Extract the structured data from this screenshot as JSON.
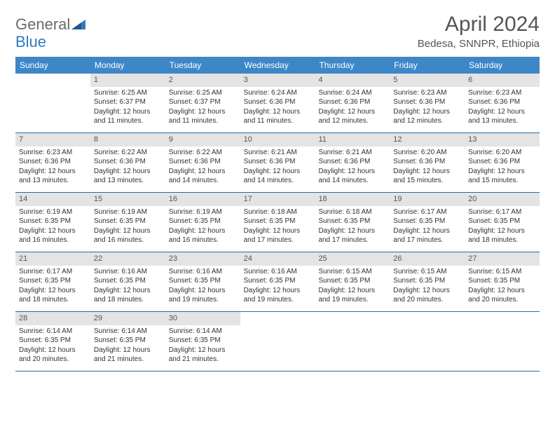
{
  "logo": {
    "textGray": "General",
    "textBlue": "Blue"
  },
  "title": "April 2024",
  "location": "Bedesa, SNNPR, Ethiopia",
  "colors": {
    "headerBar": "#3d87c7",
    "headerText": "#ffffff",
    "dayNumBg": "#e4e4e4",
    "dayNumText": "#555555",
    "bodyText": "#333333",
    "weekDivider": "#2a6aa3",
    "logoGray": "#6b6b6b",
    "logoBlue": "#2f7cc0"
  },
  "fonts": {
    "title_pt": 30,
    "location_pt": 15,
    "dow_pt": 12,
    "daynum_pt": 11,
    "body_pt": 10
  },
  "daysOfWeek": [
    "Sunday",
    "Monday",
    "Tuesday",
    "Wednesday",
    "Thursday",
    "Friday",
    "Saturday"
  ],
  "weeks": [
    [
      {
        "n": "",
        "lines": []
      },
      {
        "n": "1",
        "lines": [
          "Sunrise: 6:25 AM",
          "Sunset: 6:37 PM",
          "Daylight: 12 hours and 11 minutes."
        ]
      },
      {
        "n": "2",
        "lines": [
          "Sunrise: 6:25 AM",
          "Sunset: 6:37 PM",
          "Daylight: 12 hours and 11 minutes."
        ]
      },
      {
        "n": "3",
        "lines": [
          "Sunrise: 6:24 AM",
          "Sunset: 6:36 PM",
          "Daylight: 12 hours and 11 minutes."
        ]
      },
      {
        "n": "4",
        "lines": [
          "Sunrise: 6:24 AM",
          "Sunset: 6:36 PM",
          "Daylight: 12 hours and 12 minutes."
        ]
      },
      {
        "n": "5",
        "lines": [
          "Sunrise: 6:23 AM",
          "Sunset: 6:36 PM",
          "Daylight: 12 hours and 12 minutes."
        ]
      },
      {
        "n": "6",
        "lines": [
          "Sunrise: 6:23 AM",
          "Sunset: 6:36 PM",
          "Daylight: 12 hours and 13 minutes."
        ]
      }
    ],
    [
      {
        "n": "7",
        "lines": [
          "Sunrise: 6:23 AM",
          "Sunset: 6:36 PM",
          "Daylight: 12 hours and 13 minutes."
        ]
      },
      {
        "n": "8",
        "lines": [
          "Sunrise: 6:22 AM",
          "Sunset: 6:36 PM",
          "Daylight: 12 hours and 13 minutes."
        ]
      },
      {
        "n": "9",
        "lines": [
          "Sunrise: 6:22 AM",
          "Sunset: 6:36 PM",
          "Daylight: 12 hours and 14 minutes."
        ]
      },
      {
        "n": "10",
        "lines": [
          "Sunrise: 6:21 AM",
          "Sunset: 6:36 PM",
          "Daylight: 12 hours and 14 minutes."
        ]
      },
      {
        "n": "11",
        "lines": [
          "Sunrise: 6:21 AM",
          "Sunset: 6:36 PM",
          "Daylight: 12 hours and 14 minutes."
        ]
      },
      {
        "n": "12",
        "lines": [
          "Sunrise: 6:20 AM",
          "Sunset: 6:36 PM",
          "Daylight: 12 hours and 15 minutes."
        ]
      },
      {
        "n": "13",
        "lines": [
          "Sunrise: 6:20 AM",
          "Sunset: 6:36 PM",
          "Daylight: 12 hours and 15 minutes."
        ]
      }
    ],
    [
      {
        "n": "14",
        "lines": [
          "Sunrise: 6:19 AM",
          "Sunset: 6:35 PM",
          "Daylight: 12 hours and 16 minutes."
        ]
      },
      {
        "n": "15",
        "lines": [
          "Sunrise: 6:19 AM",
          "Sunset: 6:35 PM",
          "Daylight: 12 hours and 16 minutes."
        ]
      },
      {
        "n": "16",
        "lines": [
          "Sunrise: 6:19 AM",
          "Sunset: 6:35 PM",
          "Daylight: 12 hours and 16 minutes."
        ]
      },
      {
        "n": "17",
        "lines": [
          "Sunrise: 6:18 AM",
          "Sunset: 6:35 PM",
          "Daylight: 12 hours and 17 minutes."
        ]
      },
      {
        "n": "18",
        "lines": [
          "Sunrise: 6:18 AM",
          "Sunset: 6:35 PM",
          "Daylight: 12 hours and 17 minutes."
        ]
      },
      {
        "n": "19",
        "lines": [
          "Sunrise: 6:17 AM",
          "Sunset: 6:35 PM",
          "Daylight: 12 hours and 17 minutes."
        ]
      },
      {
        "n": "20",
        "lines": [
          "Sunrise: 6:17 AM",
          "Sunset: 6:35 PM",
          "Daylight: 12 hours and 18 minutes."
        ]
      }
    ],
    [
      {
        "n": "21",
        "lines": [
          "Sunrise: 6:17 AM",
          "Sunset: 6:35 PM",
          "Daylight: 12 hours and 18 minutes."
        ]
      },
      {
        "n": "22",
        "lines": [
          "Sunrise: 6:16 AM",
          "Sunset: 6:35 PM",
          "Daylight: 12 hours and 18 minutes."
        ]
      },
      {
        "n": "23",
        "lines": [
          "Sunrise: 6:16 AM",
          "Sunset: 6:35 PM",
          "Daylight: 12 hours and 19 minutes."
        ]
      },
      {
        "n": "24",
        "lines": [
          "Sunrise: 6:16 AM",
          "Sunset: 6:35 PM",
          "Daylight: 12 hours and 19 minutes."
        ]
      },
      {
        "n": "25",
        "lines": [
          "Sunrise: 6:15 AM",
          "Sunset: 6:35 PM",
          "Daylight: 12 hours and 19 minutes."
        ]
      },
      {
        "n": "26",
        "lines": [
          "Sunrise: 6:15 AM",
          "Sunset: 6:35 PM",
          "Daylight: 12 hours and 20 minutes."
        ]
      },
      {
        "n": "27",
        "lines": [
          "Sunrise: 6:15 AM",
          "Sunset: 6:35 PM",
          "Daylight: 12 hours and 20 minutes."
        ]
      }
    ],
    [
      {
        "n": "28",
        "lines": [
          "Sunrise: 6:14 AM",
          "Sunset: 6:35 PM",
          "Daylight: 12 hours and 20 minutes."
        ]
      },
      {
        "n": "29",
        "lines": [
          "Sunrise: 6:14 AM",
          "Sunset: 6:35 PM",
          "Daylight: 12 hours and 21 minutes."
        ]
      },
      {
        "n": "30",
        "lines": [
          "Sunrise: 6:14 AM",
          "Sunset: 6:35 PM",
          "Daylight: 12 hours and 21 minutes."
        ]
      },
      {
        "n": "",
        "lines": []
      },
      {
        "n": "",
        "lines": []
      },
      {
        "n": "",
        "lines": []
      },
      {
        "n": "",
        "lines": []
      }
    ]
  ]
}
